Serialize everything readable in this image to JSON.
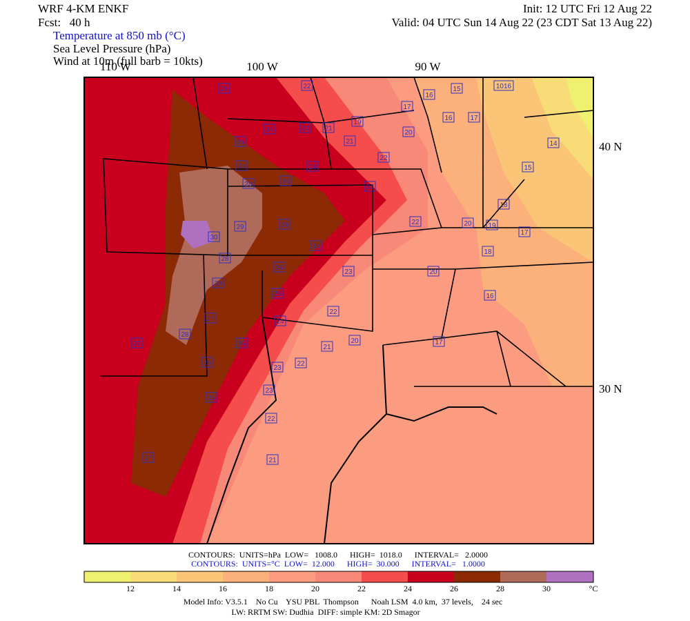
{
  "header": {
    "model": "WRF 4-KM ENKF",
    "forecast": "Fcst:   40 h",
    "field1": "Temperature at 850 mb (°C)",
    "field2": "Sea Level Pressure (hPa)",
    "field3": "Wind at 10m (full barb = 10kts)",
    "init": "Init: 12 UTC Fri 12 Aug 22",
    "valid": "Valid: 04 UTC Sun 14 Aug 22 (23 CDT Sat 13 Aug 22)"
  },
  "map": {
    "lon_labels": [
      "110 W",
      "100 W",
      "90 W"
    ],
    "lat_labels": [
      "40 N",
      "30 N"
    ],
    "contour_labels": [
      "28",
      "22",
      "16",
      "15",
      "1016",
      "17",
      "16",
      "17",
      "19",
      "24",
      "22",
      "21",
      "20",
      "21",
      "26",
      "14",
      "22",
      "24",
      "24",
      "15",
      "28",
      "26",
      "24",
      "18",
      "22",
      "20",
      "19",
      "17",
      "29",
      "28",
      "30",
      "24",
      "18",
      "28",
      "26",
      "23",
      "20",
      "28",
      "25",
      "16",
      "22",
      "27",
      "24",
      "20",
      "28",
      "21",
      "17",
      "26",
      "27",
      "26",
      "22",
      "23",
      "23",
      "25",
      "22",
      "21",
      "27"
    ]
  },
  "footer": {
    "pressure_contours": "CONTOURS:  UNITS=hPa  LOW=   1008.0      HIGH=  1018.0      INTERVAL=   2.0000",
    "temp_contours": "CONTOURS:  UNITS=°C  LOW=  12.000      HIGH=  30.000      INTERVAL=   1.0000",
    "colorbar_labels": [
      "12",
      "14",
      "16",
      "18",
      "20",
      "22",
      "24",
      "26",
      "28",
      "30"
    ],
    "colorbar_unit": "°C",
    "model_info": "Model Info: V3.5.1    No Cu    YSU PBL  Thompson      Noah LSM  4.0 km,  37 levels,    24 sec",
    "model_info2": "LW: RRTM SW: Dudhia  DIFF: simple KM: 2D Smagor"
  }
}
